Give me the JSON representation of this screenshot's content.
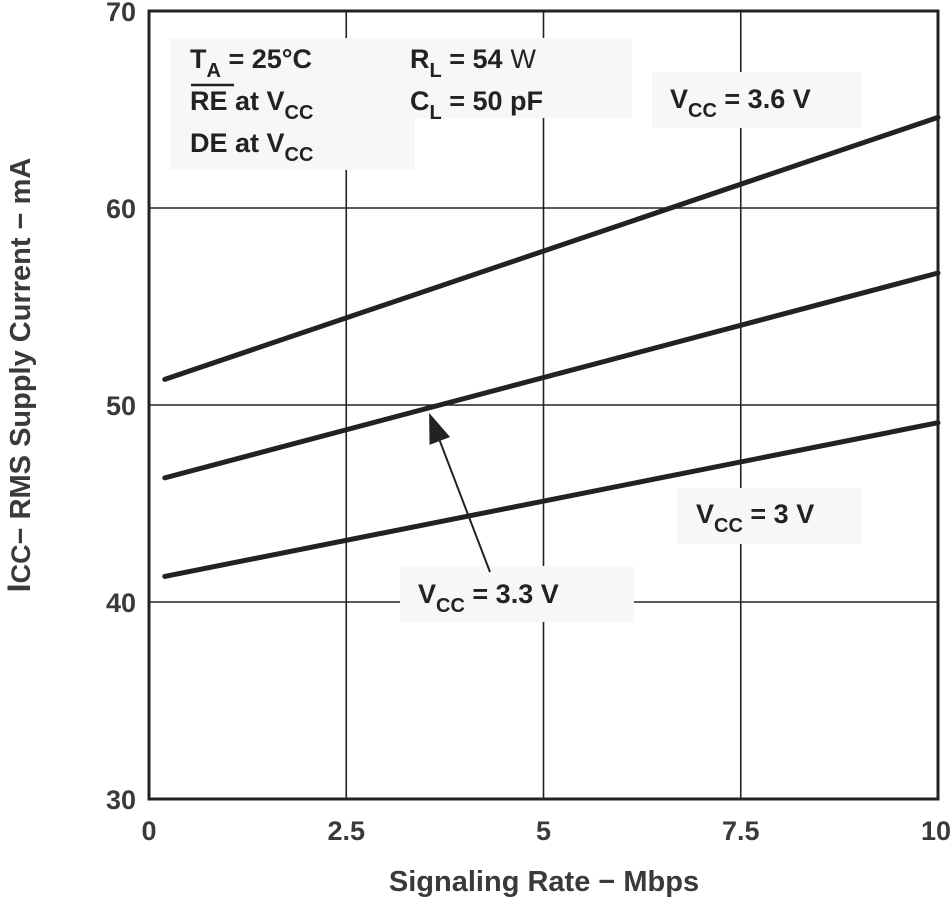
{
  "chart_data": {
    "type": "line",
    "xlabel": "Signaling Rate − Mbps",
    "ylabel_parts": {
      "main": "I",
      "sub": "CC",
      "rest": "− RMS Supply Current − mA"
    },
    "xlim": [
      0,
      10
    ],
    "ylim": [
      30,
      70
    ],
    "x_ticks": [
      0,
      2.5,
      5,
      7.5,
      10
    ],
    "x_tick_labels": [
      "0",
      "2.5",
      "5",
      "7.5",
      "10"
    ],
    "y_ticks": [
      30,
      40,
      50,
      60,
      70
    ],
    "y_tick_labels": [
      "30",
      "40",
      "50",
      "60",
      "70"
    ],
    "grid": true,
    "series": [
      {
        "name": "VCC = 3.6 V",
        "x": [
          0.2,
          10
        ],
        "y": [
          51.3,
          64.6
        ]
      },
      {
        "name": "VCC = 3.3 V",
        "x": [
          0.2,
          10
        ],
        "y": [
          46.3,
          56.7
        ]
      },
      {
        "name": "VCC = 3 V",
        "x": [
          0.2,
          10
        ],
        "y": [
          41.3,
          49.1
        ]
      }
    ],
    "series_labels": [
      {
        "main": "V",
        "sub": "CC",
        "rest": " = 3.6 V"
      },
      {
        "main": "V",
        "sub": "CC",
        "rest": " = 3.3 V"
      },
      {
        "main": "V",
        "sub": "CC",
        "rest": " = 3 V"
      }
    ],
    "arrow": {
      "from": [
        3.55,
        40.1
      ],
      "to": [
        3.55,
        49.6
      ]
    },
    "conditions": {
      "ta": {
        "main": "T",
        "sub": "A",
        "rest": " = 25°C"
      },
      "re": {
        "overbar": "RE",
        "rest": " at V",
        "sub": "CC"
      },
      "de": {
        "main": "DE at V",
        "sub": "CC"
      },
      "rl": {
        "main": "R",
        "sub": "L",
        "rest": " = 54",
        "unit": "W"
      },
      "cl": {
        "main": "C",
        "sub": "L",
        "rest": " = 50 pF"
      }
    }
  }
}
